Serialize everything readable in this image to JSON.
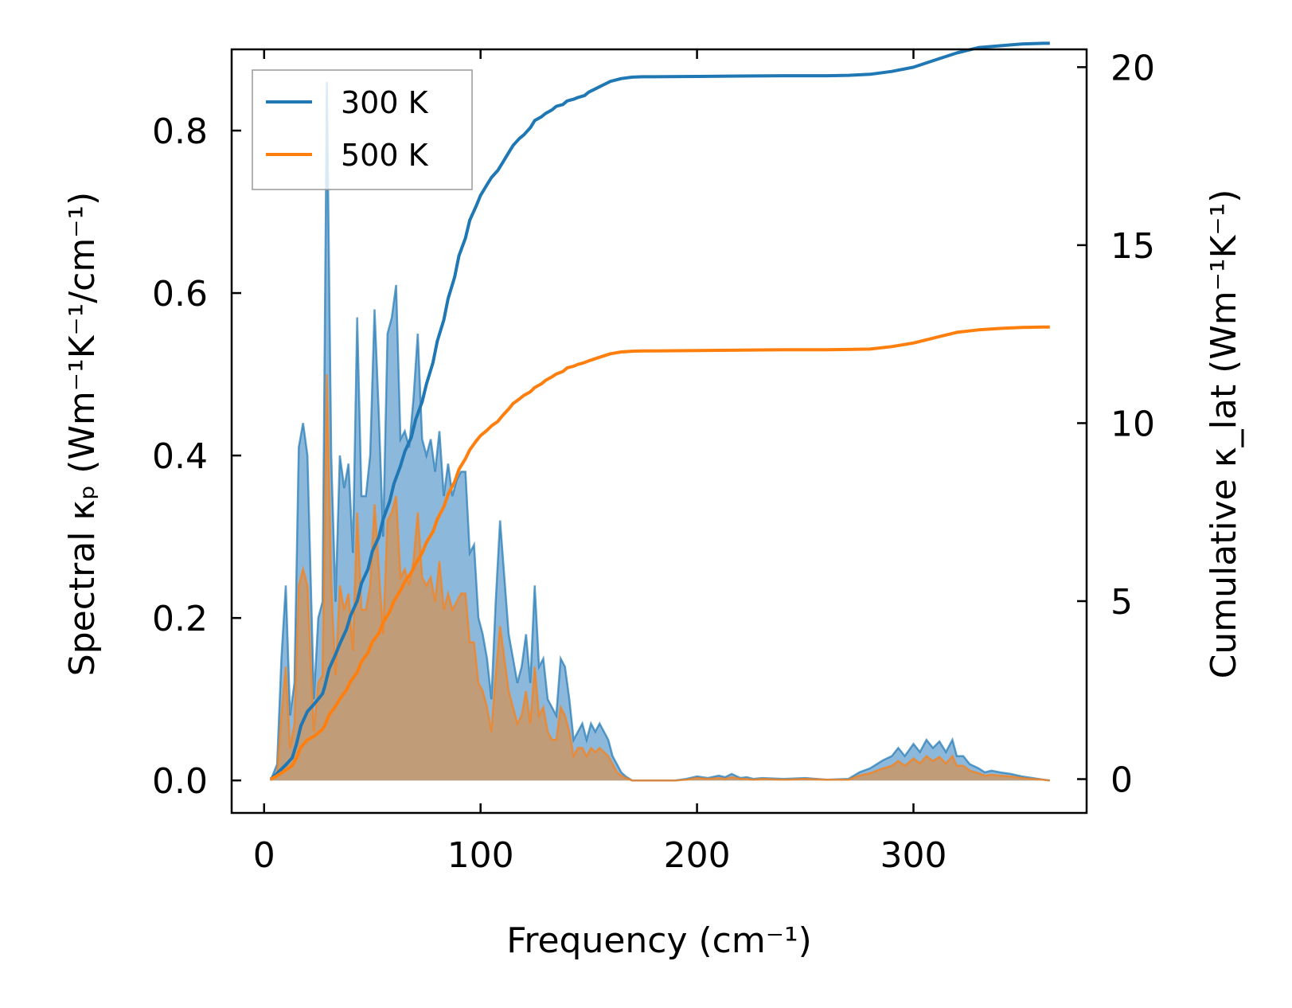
{
  "chart_data": {
    "type": "line",
    "xlabel": "Frequency (cm⁻¹)",
    "ylabel_left": "Spectral κₚ (Wm⁻¹K⁻¹/cm⁻¹)",
    "ylabel_right": "Cumulative κ_lat (Wm⁻¹K⁻¹)",
    "xlim": [
      -15,
      380
    ],
    "ylim_left": [
      -0.04,
      0.9
    ],
    "ylim_right": [
      -0.95,
      20.5
    ],
    "xticks": [
      0,
      100,
      200,
      300
    ],
    "xtick_labels": [
      "0",
      "100",
      "200",
      "300"
    ],
    "yticks_left": [
      0.0,
      0.2,
      0.4,
      0.6,
      0.8
    ],
    "ytick_labels_left": [
      "0.0",
      "0.2",
      "0.4",
      "0.6",
      "0.8"
    ],
    "yticks_right": [
      0,
      5,
      10,
      15,
      20
    ],
    "ytick_labels_right": [
      "0",
      "5",
      "10",
      "15",
      "20"
    ],
    "legend": {
      "placement": "top-left",
      "entries": [
        "300 K",
        "500 K"
      ]
    },
    "colors": {
      "300K": "#1f77b4",
      "500K": "#ff7f0e",
      "fill_300K": "#7fb0d8",
      "fill_500K": "#c49a72"
    },
    "series": [
      {
        "name": "300 K",
        "axis": "right",
        "kind": "cumulative",
        "x": [
          3,
          5,
          10,
          13,
          15,
          17,
          20,
          23,
          27,
          28,
          30,
          33,
          35,
          38,
          40,
          43,
          45,
          48,
          50,
          53,
          55,
          58,
          60,
          63,
          65,
          68,
          70,
          73,
          75,
          78,
          80,
          83,
          85,
          88,
          90,
          93,
          95,
          98,
          100,
          103,
          105,
          108,
          110,
          113,
          115,
          118,
          120,
          123,
          125,
          128,
          130,
          133,
          135,
          138,
          140,
          143,
          145,
          148,
          150,
          155,
          160,
          165,
          170,
          175,
          180,
          200,
          220,
          240,
          260,
          270,
          280,
          290,
          300,
          310,
          320,
          330,
          340,
          350,
          360,
          363
        ],
        "y": [
          0,
          0.1,
          0.4,
          0.6,
          1.0,
          1.5,
          1.9,
          2.1,
          2.4,
          2.6,
          3.1,
          3.5,
          3.8,
          4.2,
          4.6,
          5.0,
          5.5,
          5.9,
          6.4,
          6.8,
          7.3,
          7.8,
          8.3,
          8.8,
          9.2,
          9.6,
          10.1,
          10.6,
          11.1,
          11.7,
          12.3,
          12.9,
          13.5,
          14.1,
          14.7,
          15.2,
          15.7,
          16.1,
          16.4,
          16.7,
          16.9,
          17.1,
          17.3,
          17.6,
          17.8,
          18.0,
          18.1,
          18.3,
          18.5,
          18.6,
          18.7,
          18.8,
          18.9,
          18.95,
          19.05,
          19.1,
          19.15,
          19.2,
          19.3,
          19.45,
          19.6,
          19.68,
          19.72,
          19.73,
          19.73,
          19.74,
          19.75,
          19.76,
          19.76,
          19.77,
          19.8,
          19.88,
          20.0,
          20.2,
          20.4,
          20.55,
          20.6,
          20.65,
          20.67,
          20.67
        ]
      },
      {
        "name": "500 K",
        "axis": "right",
        "kind": "cumulative",
        "x": [
          3,
          5,
          10,
          13,
          15,
          17,
          20,
          23,
          27,
          28,
          30,
          33,
          35,
          38,
          40,
          43,
          45,
          48,
          50,
          53,
          55,
          58,
          60,
          63,
          65,
          68,
          70,
          73,
          75,
          78,
          80,
          83,
          85,
          88,
          90,
          93,
          95,
          98,
          100,
          103,
          105,
          108,
          110,
          113,
          115,
          118,
          120,
          123,
          125,
          128,
          130,
          133,
          135,
          138,
          140,
          143,
          145,
          148,
          150,
          155,
          160,
          165,
          170,
          175,
          180,
          200,
          220,
          240,
          260,
          270,
          280,
          290,
          300,
          310,
          320,
          330,
          340,
          350,
          360,
          363
        ],
        "y": [
          0,
          0.06,
          0.25,
          0.38,
          0.6,
          0.9,
          1.1,
          1.2,
          1.4,
          1.5,
          1.8,
          2.05,
          2.25,
          2.5,
          2.75,
          3.0,
          3.3,
          3.55,
          3.85,
          4.1,
          4.4,
          4.7,
          5.0,
          5.3,
          5.55,
          5.8,
          6.05,
          6.35,
          6.65,
          6.95,
          7.3,
          7.65,
          8.0,
          8.35,
          8.7,
          9.0,
          9.25,
          9.5,
          9.65,
          9.8,
          9.92,
          10.05,
          10.2,
          10.4,
          10.55,
          10.68,
          10.78,
          10.88,
          11.0,
          11.1,
          11.2,
          11.3,
          11.38,
          11.45,
          11.55,
          11.6,
          11.65,
          11.7,
          11.75,
          11.85,
          11.95,
          12.0,
          12.02,
          12.03,
          12.03,
          12.04,
          12.05,
          12.06,
          12.06,
          12.07,
          12.08,
          12.15,
          12.25,
          12.4,
          12.55,
          12.62,
          12.66,
          12.69,
          12.7,
          12.7
        ]
      },
      {
        "name": "300 K",
        "axis": "left",
        "kind": "spectral",
        "x": [
          3,
          6,
          8,
          10,
          12,
          14,
          16,
          18,
          20,
          23,
          25,
          27,
          29,
          31,
          33,
          35,
          37,
          39,
          41,
          43,
          45,
          47,
          49,
          51,
          53,
          55,
          57,
          59,
          61,
          63,
          65,
          67,
          69,
          71,
          73,
          75,
          77,
          79,
          81,
          83,
          85,
          87,
          89,
          91,
          93,
          95,
          97,
          99,
          101,
          103,
          105,
          107,
          109,
          111,
          113,
          115,
          117,
          119,
          121,
          123,
          125,
          127,
          129,
          131,
          133,
          135,
          137,
          139,
          141,
          143,
          145,
          147,
          149,
          151,
          153,
          155,
          157,
          159,
          161,
          163,
          165,
          167,
          170,
          175,
          180,
          190,
          195,
          200,
          205,
          210,
          213,
          216,
          220,
          223,
          226,
          230,
          240,
          250,
          260,
          270,
          275,
          280,
          283,
          286,
          290,
          293,
          296,
          300,
          303,
          306,
          309,
          312,
          315,
          318,
          320,
          323,
          326,
          330,
          333,
          336,
          340,
          345,
          350,
          355,
          360,
          363
        ],
        "y": [
          0,
          0.02,
          0.15,
          0.24,
          0.08,
          0.12,
          0.41,
          0.44,
          0.4,
          0.1,
          0.2,
          0.22,
          0.86,
          0.4,
          0.22,
          0.4,
          0.36,
          0.39,
          0.28,
          0.57,
          0.35,
          0.35,
          0.4,
          0.58,
          0.45,
          0.3,
          0.55,
          0.57,
          0.61,
          0.42,
          0.43,
          0.41,
          0.47,
          0.55,
          0.42,
          0.4,
          0.42,
          0.38,
          0.43,
          0.35,
          0.39,
          0.35,
          0.37,
          0.38,
          0.38,
          0.28,
          0.29,
          0.2,
          0.18,
          0.15,
          0.1,
          0.22,
          0.32,
          0.25,
          0.18,
          0.15,
          0.12,
          0.14,
          0.18,
          0.12,
          0.24,
          0.14,
          0.15,
          0.1,
          0.09,
          0.08,
          0.15,
          0.14,
          0.1,
          0.05,
          0.06,
          0.07,
          0.05,
          0.07,
          0.06,
          0.07,
          0.06,
          0.05,
          0.03,
          0.02,
          0.01,
          0.005,
          0,
          0,
          0,
          0,
          0.002,
          0.005,
          0.003,
          0.006,
          0.004,
          0.008,
          0.003,
          0.004,
          0.002,
          0.003,
          0.002,
          0.003,
          0.001,
          0.002,
          0.01,
          0.015,
          0.02,
          0.025,
          0.03,
          0.04,
          0.03,
          0.045,
          0.035,
          0.05,
          0.04,
          0.048,
          0.035,
          0.05,
          0.03,
          0.03,
          0.02,
          0.015,
          0.01,
          0.012,
          0.01,
          0.008,
          0.005,
          0.003,
          0.001,
          0
        ]
      },
      {
        "name": "500 K",
        "axis": "left",
        "kind": "spectral",
        "x": [
          3,
          6,
          8,
          10,
          12,
          14,
          16,
          18,
          20,
          23,
          25,
          27,
          29,
          31,
          33,
          35,
          37,
          39,
          41,
          43,
          45,
          47,
          49,
          51,
          53,
          55,
          57,
          59,
          61,
          63,
          65,
          67,
          69,
          71,
          73,
          75,
          77,
          79,
          81,
          83,
          85,
          87,
          89,
          91,
          93,
          95,
          97,
          99,
          101,
          103,
          105,
          107,
          109,
          111,
          113,
          115,
          117,
          119,
          121,
          123,
          125,
          127,
          129,
          131,
          133,
          135,
          137,
          139,
          141,
          143,
          145,
          147,
          149,
          151,
          153,
          155,
          157,
          159,
          161,
          163,
          165,
          167,
          170,
          175,
          180,
          190,
          195,
          200,
          205,
          210,
          213,
          216,
          220,
          223,
          226,
          230,
          240,
          250,
          260,
          270,
          275,
          280,
          283,
          286,
          290,
          293,
          296,
          300,
          303,
          306,
          309,
          312,
          315,
          318,
          320,
          323,
          326,
          330,
          333,
          336,
          340,
          345,
          350,
          355,
          360,
          363
        ],
        "y": [
          0,
          0.01,
          0.08,
          0.14,
          0.04,
          0.07,
          0.24,
          0.26,
          0.24,
          0.06,
          0.12,
          0.13,
          0.5,
          0.24,
          0.13,
          0.24,
          0.21,
          0.23,
          0.16,
          0.33,
          0.21,
          0.21,
          0.24,
          0.34,
          0.26,
          0.18,
          0.32,
          0.33,
          0.35,
          0.25,
          0.26,
          0.24,
          0.27,
          0.33,
          0.25,
          0.24,
          0.25,
          0.22,
          0.27,
          0.21,
          0.23,
          0.21,
          0.22,
          0.23,
          0.23,
          0.17,
          0.17,
          0.12,
          0.11,
          0.09,
          0.06,
          0.13,
          0.19,
          0.15,
          0.11,
          0.09,
          0.07,
          0.08,
          0.11,
          0.07,
          0.14,
          0.08,
          0.09,
          0.06,
          0.05,
          0.05,
          0.09,
          0.08,
          0.06,
          0.03,
          0.04,
          0.04,
          0.03,
          0.04,
          0.035,
          0.04,
          0.035,
          0.03,
          0.02,
          0.01,
          0.006,
          0.003,
          0,
          0,
          0,
          0,
          0.001,
          0.003,
          0.002,
          0.003,
          0.002,
          0.004,
          0.002,
          0.002,
          0.001,
          0.002,
          0.001,
          0.002,
          0.001,
          0.001,
          0.006,
          0.009,
          0.012,
          0.015,
          0.018,
          0.024,
          0.018,
          0.027,
          0.021,
          0.03,
          0.024,
          0.029,
          0.021,
          0.03,
          0.018,
          0.018,
          0.012,
          0.009,
          0.006,
          0.007,
          0.006,
          0.005,
          0.003,
          0.002,
          0.001,
          0
        ]
      }
    ]
  }
}
